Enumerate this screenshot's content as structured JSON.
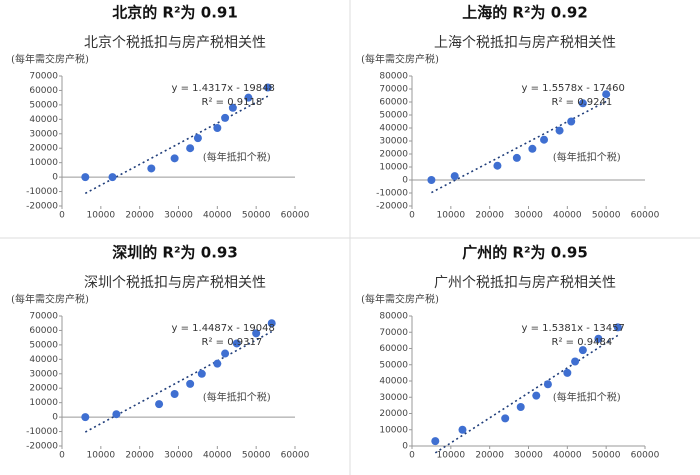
{
  "chart_data": [
    {
      "type": "scatter",
      "header": "北京的 R²为 0.91",
      "title": "北京个税抵扣与房产税相关性",
      "ylabel": "(每年需交房产税)",
      "xlabel": "(每年抵扣个税)",
      "x": [
        6000,
        13000,
        23000,
        29000,
        33000,
        35000,
        40000,
        42000,
        44000,
        48000,
        53000
      ],
      "values": [
        0,
        0,
        6000,
        13000,
        20000,
        27000,
        34000,
        41000,
        48000,
        55000,
        62000
      ],
      "color": "#3f6fd1",
      "trendline": {
        "slope": 1.4317,
        "intercept": -19848,
        "label": "y = 1.4317x - 19848",
        "r2": 0.9118,
        "r2_label": "R² = 0.9118"
      },
      "xlim": [
        0,
        60000
      ],
      "xticks": [
        0,
        10000,
        20000,
        30000,
        40000,
        50000,
        60000
      ],
      "ylim": [
        -20000,
        70000
      ],
      "yticks": [
        -20000,
        -10000,
        0,
        10000,
        20000,
        30000,
        40000,
        50000,
        60000,
        70000
      ]
    },
    {
      "type": "scatter",
      "header": "上海的 R²为 0.92",
      "title": "上海个税抵扣与房产税相关性",
      "ylabel": "(每年需交房产税)",
      "xlabel": "(每年抵扣个税)",
      "x": [
        5000,
        11000,
        22000,
        27000,
        31000,
        34000,
        38000,
        41000,
        44000,
        50000
      ],
      "values": [
        0,
        3000,
        11000,
        17000,
        24000,
        31000,
        38000,
        45000,
        59000,
        66000
      ],
      "color": "#3f6fd1",
      "trendline": {
        "slope": 1.5578,
        "intercept": -17460,
        "label": "y = 1.5578x - 17460",
        "r2": 0.9241,
        "r2_label": "R² = 0.9241"
      },
      "xlim": [
        0,
        60000
      ],
      "xticks": [
        0,
        10000,
        20000,
        30000,
        40000,
        50000,
        60000
      ],
      "ylim": [
        -20000,
        80000
      ],
      "yticks": [
        -20000,
        -10000,
        0,
        10000,
        20000,
        30000,
        40000,
        50000,
        60000,
        70000,
        80000
      ]
    },
    {
      "type": "scatter",
      "header": "深圳的 R²为 0.93",
      "title": "深圳个税抵扣与房产税相关性",
      "ylabel": "(每年需交房产税)",
      "xlabel": "(每年抵扣个税)",
      "x": [
        6000,
        14000,
        25000,
        29000,
        33000,
        36000,
        40000,
        42000,
        45000,
        50000,
        54000
      ],
      "values": [
        0,
        2000,
        9000,
        16000,
        23000,
        30000,
        37000,
        44000,
        51000,
        58000,
        65000
      ],
      "color": "#3f6fd1",
      "trendline": {
        "slope": 1.4487,
        "intercept": -19048,
        "label": "y = 1.4487x - 19048",
        "r2": 0.9317,
        "r2_label": "R² = 0.9317"
      },
      "xlim": [
        0,
        60000
      ],
      "xticks": [
        0,
        10000,
        20000,
        30000,
        40000,
        50000,
        60000
      ],
      "ylim": [
        -20000,
        70000
      ],
      "yticks": [
        -20000,
        -10000,
        0,
        10000,
        20000,
        30000,
        40000,
        50000,
        60000,
        70000
      ]
    },
    {
      "type": "scatter",
      "header": "广州的 R²为 0.95",
      "title": "广州个税抵扣与房产税相关性",
      "ylabel": "(每年需交房产税)",
      "xlabel": "(每年抵扣个税)",
      "x": [
        6000,
        13000,
        24000,
        28000,
        32000,
        35000,
        40000,
        42000,
        44000,
        48000,
        53000
      ],
      "values": [
        3000,
        10000,
        17000,
        24000,
        31000,
        38000,
        45000,
        52000,
        59000,
        66000,
        73000
      ],
      "color": "#3f6fd1",
      "trendline": {
        "slope": 1.5381,
        "intercept": -13457,
        "label": "y = 1.5381x - 13457",
        "r2": 0.9484,
        "r2_label": "R² = 0.9484"
      },
      "xlim": [
        0,
        60000
      ],
      "xticks": [
        0,
        10000,
        20000,
        30000,
        40000,
        50000,
        60000
      ],
      "ylim": [
        0,
        80000
      ],
      "yticks": [
        0,
        10000,
        20000,
        30000,
        40000,
        50000,
        60000,
        70000,
        80000
      ]
    }
  ]
}
